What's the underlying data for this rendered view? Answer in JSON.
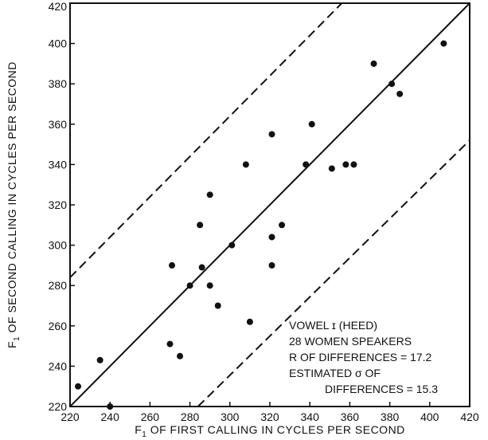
{
  "chart_data": {
    "type": "scatter",
    "x_axis": {
      "label_prefix": "F",
      "label_sub": "1",
      "label_rest": " OF FIRST CALLING IN CYCLES PER SECOND",
      "range": [
        220,
        420
      ],
      "ticks": [
        "220",
        "240",
        "260",
        "280",
        "300",
        "320",
        "340",
        "360",
        "380",
        "400",
        "420"
      ]
    },
    "y_axis": {
      "label_prefix": "F",
      "label_sub": "1",
      "label_rest": " OF SECOND CALLING IN CYCLES PER SECOND",
      "range": [
        220,
        420
      ],
      "ticks": [
        "220",
        "240",
        "260",
        "280",
        "300",
        "320",
        "340",
        "360",
        "380",
        "400",
        "420"
      ]
    },
    "grid": false,
    "points": [
      {
        "x": 224,
        "y": 230
      },
      {
        "x": 235,
        "y": 243
      },
      {
        "x": 240,
        "y": 220
      },
      {
        "x": 270,
        "y": 251
      },
      {
        "x": 271,
        "y": 290
      },
      {
        "x": 275,
        "y": 245
      },
      {
        "x": 280,
        "y": 280
      },
      {
        "x": 285,
        "y": 310
      },
      {
        "x": 286,
        "y": 289
      },
      {
        "x": 290,
        "y": 325
      },
      {
        "x": 290,
        "y": 280
      },
      {
        "x": 294,
        "y": 270
      },
      {
        "x": 301,
        "y": 300
      },
      {
        "x": 308,
        "y": 340
      },
      {
        "x": 310,
        "y": 262
      },
      {
        "x": 321,
        "y": 355
      },
      {
        "x": 321,
        "y": 304
      },
      {
        "x": 321,
        "y": 290
      },
      {
        "x": 326,
        "y": 310
      },
      {
        "x": 338,
        "y": 340
      },
      {
        "x": 341,
        "y": 360
      },
      {
        "x": 351,
        "y": 338
      },
      {
        "x": 358,
        "y": 340
      },
      {
        "x": 362,
        "y": 340
      },
      {
        "x": 372,
        "y": 390
      },
      {
        "x": 381,
        "y": 380
      },
      {
        "x": 385,
        "y": 375
      },
      {
        "x": 407,
        "y": 400
      }
    ],
    "lines": [
      {
        "name": "equality",
        "style": "solid",
        "from": [
          220,
          220
        ],
        "to": [
          420,
          420
        ]
      },
      {
        "name": "upper-bound",
        "style": "dashed",
        "from": [
          220,
          284
        ],
        "to": [
          356,
          420
        ]
      },
      {
        "name": "lower-bound",
        "style": "dashed",
        "from": [
          284,
          220
        ],
        "to": [
          420,
          352
        ]
      }
    ],
    "annotation": [
      "VOWEL ɪ (HEED)",
      "28 WOMEN SPEAKERS",
      "R OF DIFFERENCES = 17.2",
      "ESTIMATED σ OF",
      "DIFFERENCES = 15.3"
    ],
    "colors": {
      "ink": "#111111",
      "background": "#ffffff"
    }
  }
}
